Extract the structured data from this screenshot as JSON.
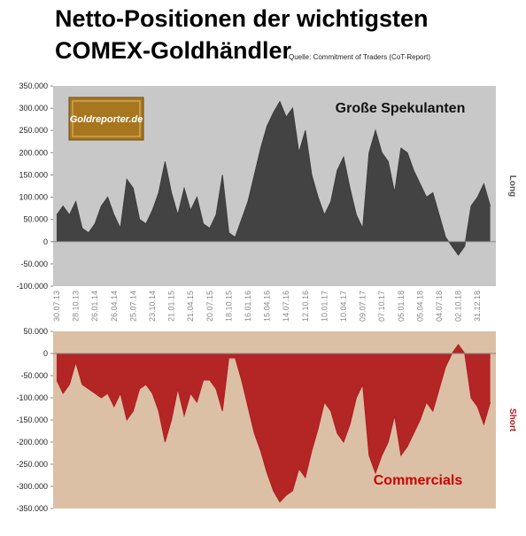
{
  "title_lines": [
    "Netto-Positionen der wichtigsten",
    "COMEX-Goldhändler"
  ],
  "source": "Quelle: Commitment of Traders (CoT-Report)",
  "logo": "Goldreporter.de",
  "chart_data": [
    {
      "type": "area",
      "categories": [
        "30.07.13",
        null,
        null,
        "28.10.13",
        null,
        null,
        "26.01.14",
        null,
        null,
        "26.04.14",
        null,
        null,
        "25.07.14",
        null,
        null,
        "23.10.14",
        null,
        null,
        "21.01.15",
        null,
        null,
        "21.04.15",
        null,
        null,
        "20.07.15",
        null,
        null,
        "18.10.15",
        null,
        null,
        "16.01.16",
        null,
        null,
        "15.04.16",
        null,
        null,
        "14.07.16",
        null,
        null,
        "12.10.16",
        null,
        null,
        "10.01.17",
        null,
        null,
        "10.04.17",
        null,
        null,
        "09.07.17",
        null,
        null,
        "07.10.17",
        null,
        null,
        "05.01.18",
        null,
        null,
        "05.04.18",
        null,
        null,
        "04.07.18",
        null,
        null,
        "02.10.18",
        null,
        null,
        "31.12.18",
        null,
        null
      ],
      "series": [
        {
          "name": "Große Spekulanten",
          "color": "#3c3c3c",
          "values": [
            60000,
            80000,
            60000,
            90000,
            30000,
            20000,
            40000,
            80000,
            100000,
            60000,
            30000,
            140000,
            120000,
            50000,
            40000,
            70000,
            110000,
            180000,
            110000,
            60000,
            120000,
            70000,
            100000,
            40000,
            30000,
            60000,
            150000,
            20000,
            10000,
            50000,
            90000,
            150000,
            210000,
            260000,
            290000,
            315000,
            280000,
            300000,
            200000,
            250000,
            150000,
            100000,
            60000,
            90000,
            160000,
            190000,
            120000,
            60000,
            30000,
            200000,
            250000,
            200000,
            180000,
            110000,
            210000,
            200000,
            160000,
            130000,
            100000,
            110000,
            60000,
            10000,
            -10000,
            -30000,
            -10000,
            80000,
            100000,
            130000,
            80000
          ]
        }
      ],
      "ylabel": "Long",
      "ylim": [
        -100000,
        350000
      ],
      "yticks": [
        {
          "value": 350000,
          "label": "350.000"
        },
        {
          "value": 300000,
          "label": "300.000"
        },
        {
          "value": 250000,
          "label": "250.000"
        },
        {
          "value": 200000,
          "label": "200.000"
        },
        {
          "value": 150000,
          "label": "150.000"
        },
        {
          "value": 100000,
          "label": "100.000"
        },
        {
          "value": 50000,
          "label": "50.000"
        },
        0,
        {
          "value": -50000,
          "label": "-50.000"
        },
        {
          "value": -100000,
          "label": "-100.000"
        }
      ],
      "background": "#c8c8c8"
    },
    {
      "type": "area",
      "series": [
        {
          "name": "Commercials",
          "color": "#b01e1e",
          "values": [
            -60000,
            -90000,
            -70000,
            -20000,
            -70000,
            -80000,
            -90000,
            -100000,
            -90000,
            -120000,
            -90000,
            -150000,
            -130000,
            -80000,
            -70000,
            -90000,
            -130000,
            -200000,
            -150000,
            -80000,
            -140000,
            -90000,
            -110000,
            -60000,
            -60000,
            -80000,
            -130000,
            -10000,
            -10000,
            -60000,
            -120000,
            -180000,
            -220000,
            -270000,
            -310000,
            -335000,
            -320000,
            -310000,
            -260000,
            -280000,
            -220000,
            -170000,
            -110000,
            -130000,
            -180000,
            -200000,
            -160000,
            -100000,
            -70000,
            -230000,
            -270000,
            -230000,
            -200000,
            -140000,
            -230000,
            -210000,
            -180000,
            -150000,
            -110000,
            -130000,
            -80000,
            -30000,
            0,
            20000,
            0,
            -100000,
            -120000,
            -160000,
            -110000
          ]
        }
      ],
      "ylabel": "Short",
      "ylim": [
        -350000,
        50000
      ],
      "yticks": [
        {
          "value": 50000,
          "label": "50.000"
        },
        0,
        {
          "value": -50000,
          "label": "-50.000"
        },
        {
          "value": -100000,
          "label": "-100.000"
        },
        {
          "value": -150000,
          "label": "-150.000"
        },
        {
          "value": -200000,
          "label": "-200.000"
        },
        {
          "value": -250000,
          "label": "-250.000"
        },
        {
          "value": -300000,
          "label": "-300.000"
        },
        {
          "value": -350000,
          "label": "-350.000"
        }
      ],
      "background": "#dcc0a6"
    }
  ]
}
